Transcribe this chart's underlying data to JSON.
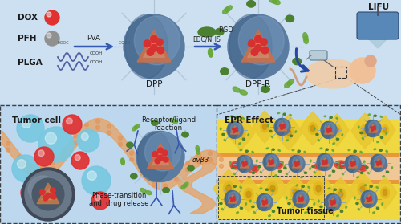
{
  "bg_color": "#bdd8ee",
  "upper_bg": "#cce0f0",
  "lower_bg": "#bdd8ee",
  "arrow_color": "#3558b0",
  "dpp_body": "#5a7ca0",
  "dpp_light": "#7a9cc0",
  "dpp_dark": "#3a5c80",
  "dpp_tri": "#c8704a",
  "dpp_dot": "#d83030",
  "rgd_color": "#4a8030",
  "rgd_leaf": "#68a838",
  "vessel_orange": "#e8a060",
  "vessel_inner": "#f0c898",
  "yellow_tissue": "#e8c830",
  "yellow_bright": "#f0d840",
  "tumor_cell_outer": "#e0b820",
  "tumor_cell_inner": "#c89010",
  "epr_particle_body": "#5a7898",
  "epr_particle_tri": "#c07848",
  "cyan_sphere": "#78c8e0",
  "red_sphere": "#e03030",
  "membrane_color": "#e8a060",
  "lifu_body": "#5888b8",
  "lifu_beam": "#a8c8d8",
  "labels": {
    "DOX": "DOX",
    "PFH": "PFH",
    "PLGA": "PLGA",
    "DPP": "DPP",
    "DPPR": "DPP-R",
    "PVA": "PVA",
    "EDC_NHS": "EDC/NHS",
    "RGD": "RGD",
    "LIFU": "LIFU",
    "tumor_cell": "Tumor cell",
    "receptor_ligand": "Receptor/ligand\nreaction",
    "avb3": "αvβ3",
    "phase_transition": "Phase-transition\nand  drug release",
    "epr_effect": "EPR Effect",
    "tumor_tissue": "Tumor tissue",
    "COOH1": "COOH",
    "COOH2": "COOH"
  }
}
